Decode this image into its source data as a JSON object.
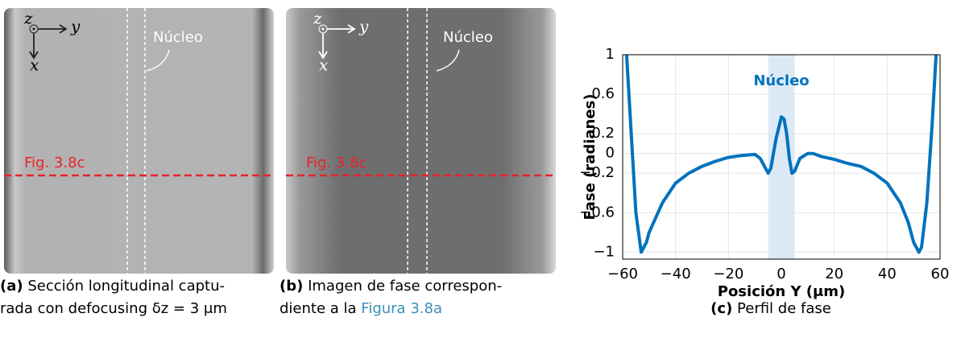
{
  "panels": [
    {
      "axis_labels": [
        "z",
        "y",
        "x"
      ],
      "annotation": "Núcleo",
      "line_label": "Fig. 3.8c",
      "caption_label": "(a)",
      "caption_lines": [
        "Sección longitudinal captu-",
        "rada con defocusing δz = 3 μm"
      ]
    },
    {
      "axis_labels": [
        "z",
        "y",
        "x"
      ],
      "annotation": "Núcleo",
      "line_label": "Fig. 3.8c",
      "caption_label": "(b)",
      "caption_lines": [
        "Imagen de fase correspon-",
        "diente a la"
      ],
      "caption_link": "Figura 3.8a"
    }
  ],
  "chart_data": {
    "type": "line",
    "caption_label": "(c)",
    "caption": "Perfil de fase",
    "xlabel": "Posición Y (μm)",
    "ylabel": "Fase (radianes)",
    "annotation": "Núcleo",
    "band": [
      -5,
      5
    ],
    "band_color": "#d6e6f4",
    "grid": true,
    "xlim": [
      -60,
      60
    ],
    "ylim": [
      -1.07,
      1
    ],
    "xticks": [
      {
        "value": -60,
        "label": "−60"
      },
      {
        "value": -40,
        "label": "−40"
      },
      {
        "value": -20,
        "label": "−20"
      },
      0,
      20,
      40,
      60
    ],
    "yticks": [
      {
        "value": -1,
        "label": "−1"
      },
      {
        "value": -0.6,
        "label": "−0.6"
      },
      {
        "value": -0.2,
        "label": "−0.2"
      },
      0,
      0.2,
      0.6,
      1
    ],
    "series": [
      {
        "color": "#0072bd",
        "x": [
          -58.5,
          -57,
          -55,
          -53,
          -51,
          -50,
          -45,
          -40,
          -35,
          -30,
          -25,
          -20,
          -15,
          -10,
          -8,
          -6,
          -5,
          -4,
          -2,
          0,
          1,
          2,
          3,
          4,
          5,
          7,
          10,
          12,
          15,
          20,
          25,
          30,
          35,
          40,
          45,
          48,
          50,
          52,
          53,
          55,
          57,
          58.5
        ],
        "values": [
          1,
          0.3,
          -0.6,
          -1,
          -0.9,
          -0.8,
          -0.5,
          -0.3,
          -0.2,
          -0.13,
          -0.08,
          -0.04,
          -0.02,
          -0.01,
          -0.05,
          -0.15,
          -0.2,
          -0.15,
          0.15,
          0.37,
          0.35,
          0.2,
          -0.05,
          -0.2,
          -0.18,
          -0.05,
          0,
          0,
          -0.03,
          -0.06,
          -0.1,
          -0.13,
          -0.2,
          -0.3,
          -0.5,
          -0.7,
          -0.9,
          -1,
          -0.95,
          -0.5,
          0.3,
          1
        ]
      }
    ]
  }
}
